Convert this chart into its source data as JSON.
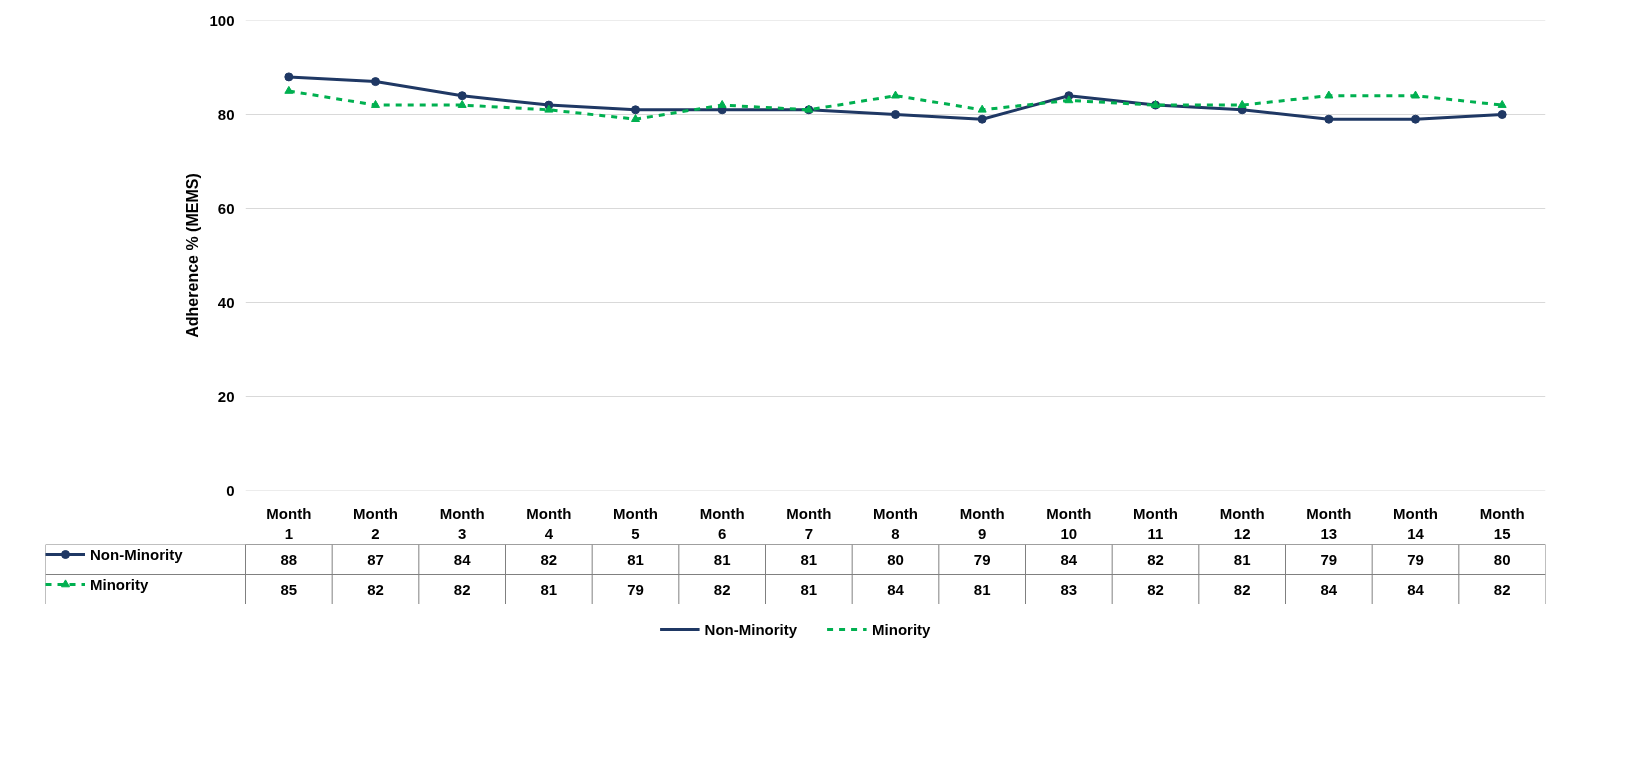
{
  "chart_data": {
    "type": "line",
    "ylabel": "Adherence % (MEMS)",
    "categories": [
      "Month 1",
      "Month 2",
      "Month 3",
      "Month 4",
      "Month 5",
      "Month 6",
      "Month 7",
      "Month 8",
      "Month 9",
      "Month 10",
      "Month 11",
      "Month 12",
      "Month 13",
      "Month 14",
      "Month 15"
    ],
    "series": [
      {
        "name": "Non-Minority",
        "color": "#1f3864",
        "marker": "circle",
        "line_style": "solid",
        "values": [
          88,
          87,
          84,
          82,
          81,
          81,
          81,
          80,
          79,
          84,
          82,
          81,
          79,
          79,
          80
        ]
      },
      {
        "name": "Minority",
        "color": "#00b050",
        "marker": "triangle",
        "line_style": "dashed",
        "values": [
          85,
          82,
          82,
          81,
          79,
          82,
          81,
          84,
          81,
          83,
          82,
          82,
          84,
          84,
          82
        ]
      }
    ],
    "ylim": [
      0,
      100
    ],
    "yticks": [
      0,
      20,
      40,
      60,
      80,
      100
    ],
    "grid": "y",
    "legend": "bottom",
    "data_labels": true
  }
}
